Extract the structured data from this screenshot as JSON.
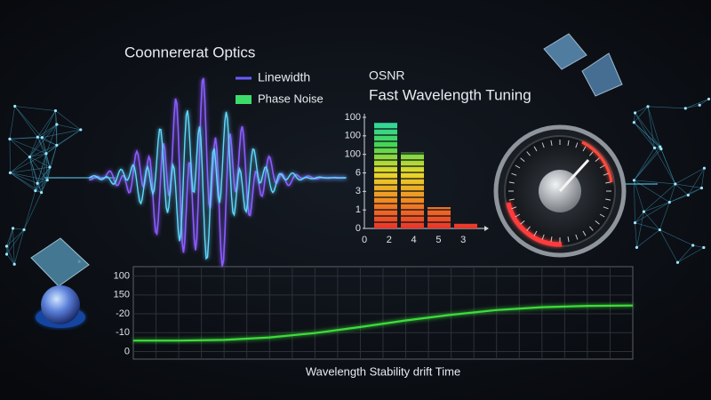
{
  "title": "Coonnererat Optics",
  "legend": [
    {
      "name": "Linewidth",
      "color": "#6a5cff"
    },
    {
      "name": "Phase Noise",
      "color": "#3ddc6a"
    }
  ],
  "bar_panel": {
    "label": "OSNR",
    "title": "Fast Wavelength Tuning",
    "ylim": [
      0,
      6
    ],
    "yticks": [
      {
        "value": 6,
        "label": "100"
      },
      {
        "value": 5,
        "label": "100"
      },
      {
        "value": 4,
        "label": "100"
      },
      {
        "value": 3,
        "label": "6"
      },
      {
        "value": 2,
        "label": "3"
      },
      {
        "value": 1,
        "label": "1"
      },
      {
        "value": 0,
        "label": "0"
      }
    ],
    "xticks": [
      "0",
      "2",
      "4",
      "5",
      "3"
    ],
    "values": [
      5.7,
      4.1,
      1.15,
      0.25
    ]
  },
  "line_panel": {
    "xlabel": "Wavelength Stability drift Time",
    "color": "#3ddc3a",
    "ylim": [
      -0.4,
      4.5
    ],
    "yticks": [
      {
        "value": 4,
        "label": "100"
      },
      {
        "value": 3,
        "label": "150"
      },
      {
        "value": 2,
        "label": "-20"
      },
      {
        "value": 1,
        "label": "-10"
      },
      {
        "value": 0,
        "label": "0"
      }
    ],
    "values": [
      0.58,
      0.58,
      0.62,
      0.75,
      0.98,
      1.3,
      1.65,
      1.95,
      2.2,
      2.35,
      2.42,
      2.44
    ]
  }
}
